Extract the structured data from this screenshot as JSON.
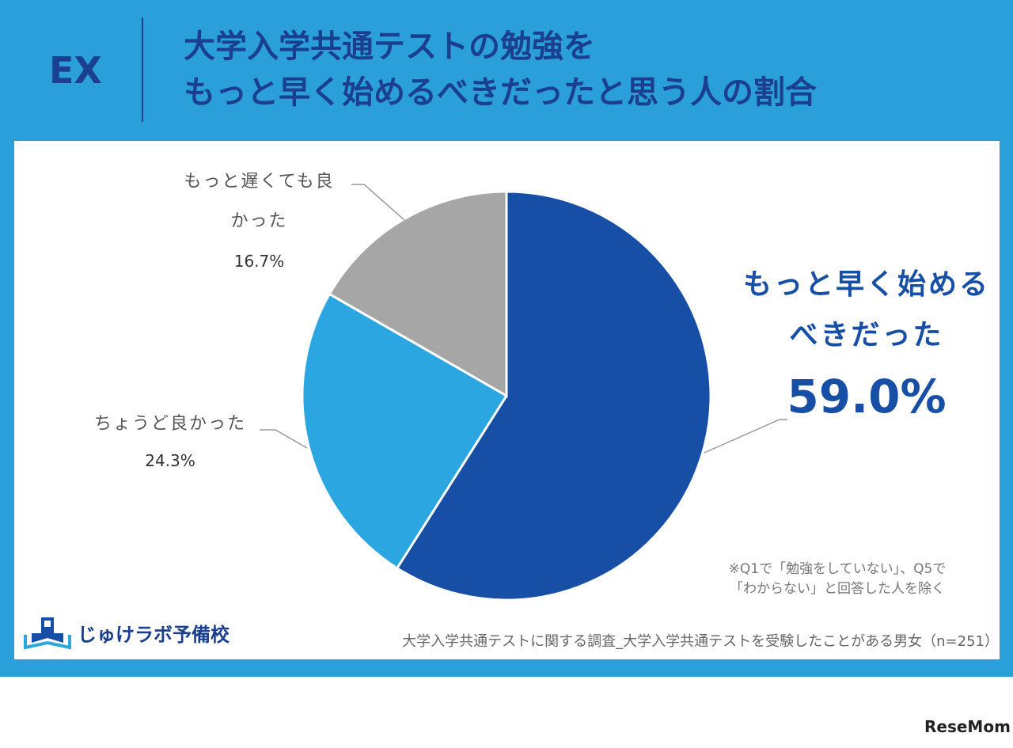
{
  "header": {
    "tag": "EX",
    "title_line1": "大学入学共通テストの勉強を",
    "title_line2": "もっと早く始めるべきだったと思う人の割合"
  },
  "chart_data": {
    "type": "pie",
    "slices": [
      {
        "label": "もっと早く始めるべきだった",
        "value": 59.0,
        "display": "59.0%",
        "color": "#174ea6"
      },
      {
        "label": "ちょうど良かった",
        "value": 24.3,
        "display": "24.3%",
        "color": "#2ca6e0"
      },
      {
        "label": "もっと遅くても良かった",
        "value": 16.7,
        "display": "16.7%",
        "color": "#a6a6a6"
      }
    ]
  },
  "labels": {
    "main_line1": "もっと早く始める",
    "main_line2": "べきだった",
    "main_pct": "59.0%",
    "just_right": "ちょうど良かった",
    "just_right_pct": "24.3%",
    "later_line1": "もっと遅くても良",
    "later_line2": "かった",
    "later_pct": "16.7%"
  },
  "note": {
    "line1": "※Q1で「勉強をしていない」、Q5で",
    "line2": "「わからない」と回答した人を除く"
  },
  "source": "大学入学共通テストに関する調査_大学入学共通テストを受験したことがある男女（n=251）",
  "logo_text": "じゅけラボ予備校",
  "watermark": "ReseMom"
}
